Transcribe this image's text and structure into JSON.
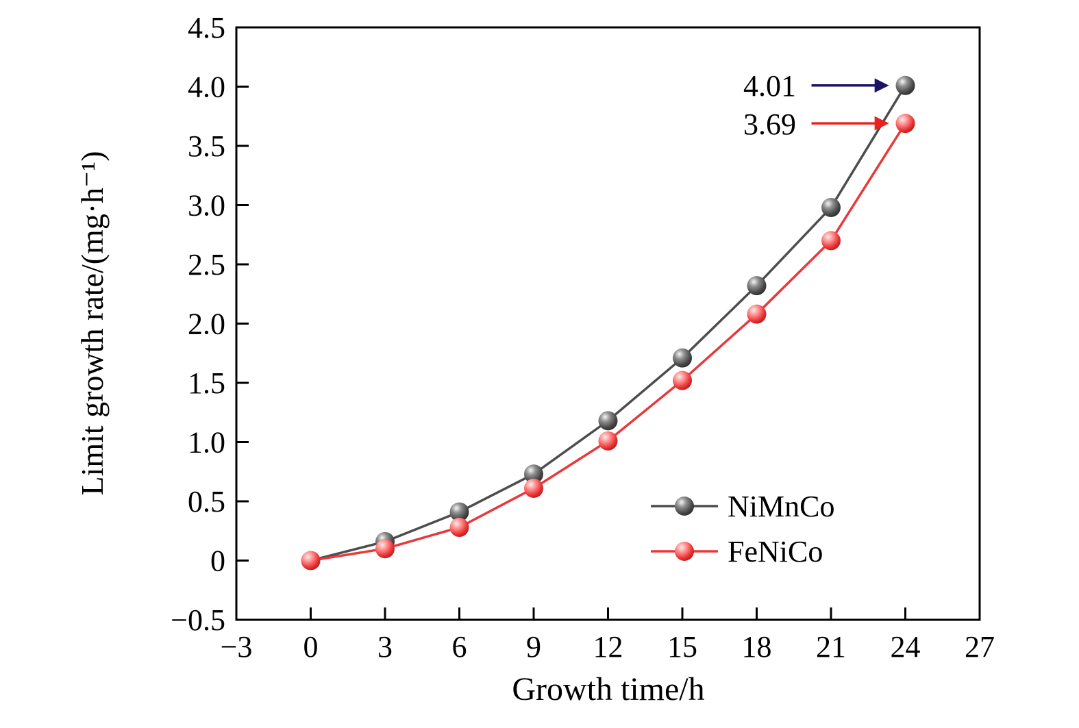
{
  "chart_data": {
    "type": "line",
    "title": "",
    "xlabel": "Growth time/h",
    "ylabel": "Limit growth rate/(mg·h⁻¹)",
    "xlim": [
      -3,
      27
    ],
    "ylim": [
      -0.5,
      4.5
    ],
    "xticks": [
      -3,
      0,
      3,
      6,
      9,
      12,
      15,
      18,
      21,
      24,
      27
    ],
    "yticks": [
      -0.5,
      0,
      0.5,
      1,
      1.5,
      2,
      2.5,
      3,
      3.5,
      4,
      4.5
    ],
    "grid": false,
    "x": [
      0,
      3,
      6,
      9,
      12,
      15,
      18,
      21,
      24
    ],
    "series": [
      {
        "name": "NiMnCo",
        "color": "#4d4d4d",
        "values": [
          0,
          0.16,
          0.41,
          0.73,
          1.18,
          1.71,
          2.32,
          2.98,
          4.01
        ]
      },
      {
        "name": "FeNiCo",
        "color": "#e8383b",
        "values": [
          0,
          0.1,
          0.28,
          0.61,
          1.01,
          1.52,
          2.08,
          2.7,
          3.69
        ]
      }
    ],
    "legend": {
      "position": "inside-lower-right"
    },
    "annotations": [
      {
        "text": "4.01",
        "color": "#1b1464",
        "x": 24,
        "y": 4.01
      },
      {
        "text": "3.69",
        "color": "#e8221f",
        "x": 24,
        "y": 3.69
      }
    ]
  }
}
